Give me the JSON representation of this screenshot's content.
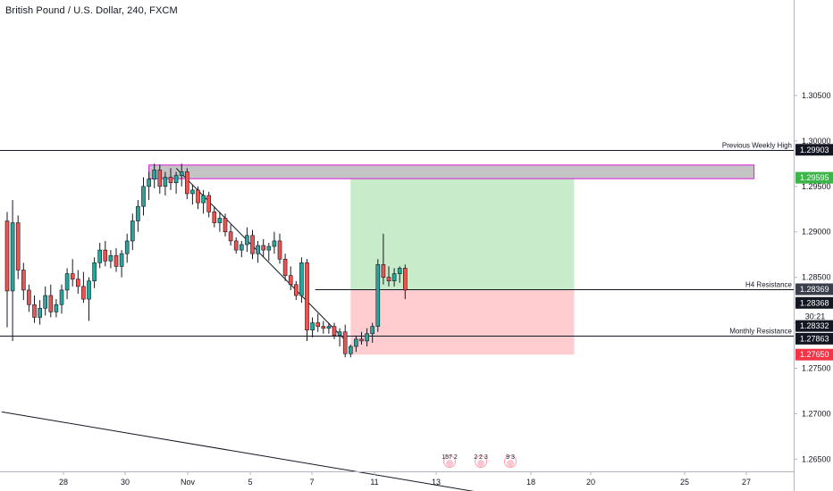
{
  "header": {
    "title": "British Pound / U.S. Dollar, 240, FXCM"
  },
  "colors": {
    "up": "#26a69a",
    "down": "#ef5350",
    "dark": "#131722",
    "target_zone": "#c8ecca",
    "stop_zone": "#ffcdd0",
    "supply_fill": "#c4c4c4",
    "supply_border": "#d81bd8",
    "target_tag": "#3eb54b",
    "stop_tag": "#f23645",
    "price_tag": "#131722",
    "h4_tag": "#3a3f4b"
  },
  "chart_data": {
    "type": "candlestick",
    "symbol": "British Pound / U.S. Dollar",
    "interval": "240",
    "source": "FXCM",
    "x_axis": {
      "ticks": [
        "28",
        "30",
        "Nov",
        "5",
        "7",
        "11",
        "13",
        "18",
        "20",
        "25",
        "27"
      ]
    },
    "y_axis": {
      "range": [
        1.2615,
        1.3155
      ],
      "ticks": [
        "1.30500",
        "1.30000",
        "1.29500",
        "1.29000",
        "1.28500",
        "1.28000",
        "1.27500",
        "1.27000",
        "1.26500"
      ]
    },
    "candles": [
      [
        1.2912,
        1.2922,
        1.2795,
        1.2835
      ],
      [
        1.2835,
        1.2935,
        1.278,
        1.291
      ],
      [
        1.291,
        1.2918,
        1.2848,
        1.2858
      ],
      [
        1.2858,
        1.2866,
        1.2825,
        1.2836
      ],
      [
        1.2836,
        1.2842,
        1.2812,
        1.282
      ],
      [
        1.282,
        1.283,
        1.28,
        1.2806
      ],
      [
        1.2806,
        1.2825,
        1.2798,
        1.2816
      ],
      [
        1.2816,
        1.284,
        1.2808,
        1.283
      ],
      [
        1.283,
        1.2842,
        1.2806,
        1.2812
      ],
      [
        1.2812,
        1.2826,
        1.2806,
        1.282
      ],
      [
        1.282,
        1.2842,
        1.281,
        1.2836
      ],
      [
        1.2836,
        1.286,
        1.2826,
        1.2854
      ],
      [
        1.2854,
        1.287,
        1.284,
        1.2848
      ],
      [
        1.2848,
        1.2858,
        1.2832,
        1.284
      ],
      [
        1.284,
        1.2856,
        1.2822,
        1.2826
      ],
      [
        1.2826,
        1.285,
        1.2802,
        1.2846
      ],
      [
        1.2846,
        1.2872,
        1.2838,
        1.2866
      ],
      [
        1.2866,
        1.2888,
        1.286,
        1.288
      ],
      [
        1.288,
        1.289,
        1.2862,
        1.2868
      ],
      [
        1.2868,
        1.288,
        1.286,
        1.2874
      ],
      [
        1.2874,
        1.2882,
        1.2856,
        1.2862
      ],
      [
        1.2862,
        1.288,
        1.285,
        1.2876
      ],
      [
        1.2876,
        1.2898,
        1.2866,
        1.289
      ],
      [
        1.289,
        1.292,
        1.288,
        1.2912
      ],
      [
        1.2912,
        1.2935,
        1.29,
        1.2928
      ],
      [
        1.2928,
        1.296,
        1.2918,
        1.295
      ],
      [
        1.295,
        1.2966,
        1.2935,
        1.2958
      ],
      [
        1.2958,
        1.2975,
        1.2948,
        1.2968
      ],
      [
        1.2968,
        1.2974,
        1.2942,
        1.295
      ],
      [
        1.295,
        1.2966,
        1.294,
        1.296
      ],
      [
        1.296,
        1.297,
        1.2946,
        1.2954
      ],
      [
        1.2954,
        1.2966,
        1.2942,
        1.2962
      ],
      [
        1.2962,
        1.2975,
        1.295,
        1.2966
      ],
      [
        1.2966,
        1.297,
        1.2936,
        1.2942
      ],
      [
        1.2942,
        1.2952,
        1.293,
        1.2946
      ],
      [
        1.2946,
        1.295,
        1.2925,
        1.2932
      ],
      [
        1.2932,
        1.2946,
        1.292,
        1.294
      ],
      [
        1.294,
        1.2944,
        1.2916,
        1.2922
      ],
      [
        1.2922,
        1.2928,
        1.2905,
        1.291
      ],
      [
        1.291,
        1.2922,
        1.29,
        1.2915
      ],
      [
        1.2915,
        1.292,
        1.2895,
        1.29
      ],
      [
        1.29,
        1.2908,
        1.2885,
        1.289
      ],
      [
        1.289,
        1.2894,
        1.2876,
        1.288
      ],
      [
        1.288,
        1.289,
        1.2872,
        1.2886
      ],
      [
        1.2886,
        1.2905,
        1.2878,
        1.2896
      ],
      [
        1.2896,
        1.2902,
        1.287,
        1.2876
      ],
      [
        1.2876,
        1.289,
        1.2866,
        1.2885
      ],
      [
        1.2885,
        1.2892,
        1.2872,
        1.288
      ],
      [
        1.288,
        1.2888,
        1.2868,
        1.2884
      ],
      [
        1.2884,
        1.29,
        1.2876,
        1.289
      ],
      [
        1.289,
        1.2898,
        1.2865,
        1.287
      ],
      [
        1.287,
        1.2876,
        1.2846,
        1.2852
      ],
      [
        1.2852,
        1.2862,
        1.2836,
        1.2842
      ],
      [
        1.2842,
        1.2846,
        1.2825,
        1.283
      ],
      [
        1.283,
        1.2872,
        1.2822,
        1.2866
      ],
      [
        1.2866,
        1.287,
        1.278,
        1.2792
      ],
      [
        1.2792,
        1.2806,
        1.2784,
        1.28
      ],
      [
        1.28,
        1.281,
        1.279,
        1.2796
      ],
      [
        1.2796,
        1.2802,
        1.2788,
        1.2794
      ],
      [
        1.2794,
        1.28,
        1.2788,
        1.2796
      ],
      [
        1.2796,
        1.28,
        1.2782,
        1.2786
      ],
      [
        1.2786,
        1.2794,
        1.2774,
        1.279
      ],
      [
        1.279,
        1.2798,
        1.2762,
        1.2766
      ],
      [
        1.2766,
        1.2776,
        1.2762,
        1.2774
      ],
      [
        1.2774,
        1.2786,
        1.2768,
        1.2782
      ],
      [
        1.2782,
        1.279,
        1.2776,
        1.278
      ],
      [
        1.278,
        1.2794,
        1.2774,
        1.2788
      ],
      [
        1.2788,
        1.28,
        1.2778,
        1.2796
      ],
      [
        1.2796,
        1.287,
        1.279,
        1.2864
      ],
      [
        1.2864,
        1.2898,
        1.2842,
        1.285
      ],
      [
        1.285,
        1.2862,
        1.284,
        1.2846
      ],
      [
        1.2846,
        1.286,
        1.284,
        1.2854
      ],
      [
        1.2854,
        1.2862,
        1.2844,
        1.286
      ],
      [
        1.286,
        1.2864,
        1.2826,
        1.2836
      ]
    ],
    "horizontal_levels": [
      {
        "label": "Previous Weekly High",
        "price": 1.29903
      },
      {
        "label": "H4 Resistance",
        "price": 1.28368
      },
      {
        "label": "Monthly Resistance",
        "price": 1.27863
      }
    ],
    "supply_zone": {
      "top": 1.29735,
      "bottom": 1.29585
    },
    "trendlines": [
      {
        "from": [
          31,
          1.297
        ],
        "to": [
          62,
          1.2781
        ]
      },
      {
        "from": [
          -1,
          1.2702
        ],
        "to": [
          102,
          1.2598
        ]
      }
    ],
    "position": {
      "type": "long",
      "start_bar": 63,
      "end_bar": 104,
      "entry": 1.28369,
      "target": 1.29595,
      "stop": 1.2765
    },
    "price_labels": [
      {
        "value": "1.29903",
        "style": "dark"
      },
      {
        "value": "1.29595",
        "style": "target"
      },
      {
        "value": "1.28369",
        "style": "h4"
      },
      {
        "value": "1.28368",
        "style": "dark"
      },
      {
        "value": "30:21",
        "style": "timer"
      },
      {
        "value": "1.28332",
        "style": "dark"
      },
      {
        "value": "1.27863",
        "style": "dark"
      },
      {
        "value": "1.27650",
        "style": "stop"
      }
    ],
    "event_markers": [
      {
        "text": "157 2"
      },
      {
        "text": "2 2 3"
      },
      {
        "text": "9 3"
      }
    ]
  }
}
